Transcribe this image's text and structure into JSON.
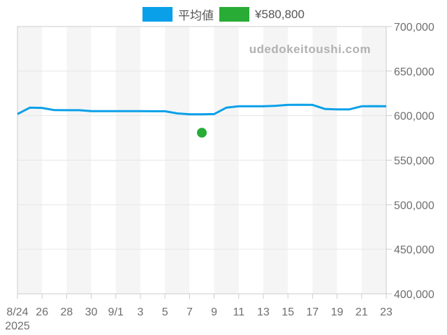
{
  "watermark": "udedokeitoushi.com",
  "colors": {
    "average_line": "#09a0e9",
    "price_point": "#28ac35",
    "axis_text": "#6e6e6e",
    "legend_text": "#555555",
    "gridline": "#e6e6e6",
    "plot_border": "#cccccc",
    "tick": "#cccccc",
    "band": "#f5f5f5",
    "band_alt": "#ffffff",
    "watermark": "#b1b1b1"
  },
  "legend": {
    "items": [
      {
        "label": "平均値",
        "color": "#09a0e9",
        "marker": "line-swatch"
      },
      {
        "label": "¥580,800",
        "color": "#28ac35",
        "marker": "point-swatch"
      }
    ]
  },
  "chart_data": {
    "type": "line",
    "title": "",
    "xlabel": "",
    "ylabel": "",
    "grid": true,
    "legend_position": "top",
    "ylim": [
      400000,
      700000
    ],
    "ytick_step": 50000,
    "y_tick_labels": [
      "400,000",
      "450,000",
      "500,000",
      "550,000",
      "600,000",
      "650,000",
      "700,000"
    ],
    "x": [
      "8/24",
      "8/25",
      "8/26",
      "8/27",
      "8/28",
      "8/29",
      "8/30",
      "8/31",
      "9/1",
      "9/2",
      "9/3",
      "9/4",
      "9/5",
      "9/6",
      "9/7",
      "9/8",
      "9/9",
      "9/10",
      "9/11",
      "9/12",
      "9/13",
      "9/14",
      "9/15",
      "9/16",
      "9/17",
      "9/18",
      "9/19",
      "9/20",
      "9/21",
      "9/22",
      "9/23"
    ],
    "x_tick_indices": [
      0,
      2,
      4,
      6,
      8,
      10,
      12,
      14,
      16,
      18,
      20,
      22,
      24,
      26,
      28,
      30
    ],
    "x_tick_labels": [
      "8/24",
      "26",
      "28",
      "30",
      "9/1",
      "3",
      "5",
      "7",
      "9",
      "11",
      "13",
      "15",
      "17",
      "19",
      "21",
      "23"
    ],
    "year_label": "2025",
    "series": [
      {
        "name": "平均値",
        "type": "line",
        "color": "#09a0e9",
        "values": [
          601800,
          608900,
          608700,
          606200,
          606100,
          606100,
          605100,
          605000,
          605000,
          605000,
          605000,
          604900,
          604900,
          602500,
          601500,
          601500,
          601800,
          609000,
          610500,
          610500,
          610500,
          611000,
          612000,
          612200,
          612000,
          607500,
          607000,
          607000,
          610500,
          610600,
          610500
        ]
      },
      {
        "name": "¥580,800",
        "type": "scatter",
        "color": "#28ac35",
        "points": [
          {
            "x": "9/8",
            "y": 580800
          }
        ]
      }
    ]
  }
}
